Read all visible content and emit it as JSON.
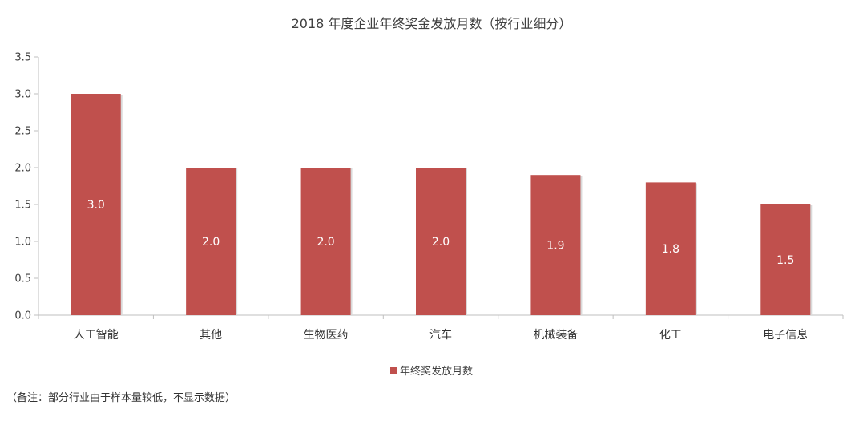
{
  "chart_data": {
    "type": "bar",
    "title": "2018 年度企业年终奖金发放月数（按行业细分）",
    "categories": [
      "人工智能",
      "其他",
      "生物医药",
      "汽车",
      "机械装备",
      "化工",
      "电子信息"
    ],
    "values": [
      3.0,
      2.0,
      2.0,
      2.0,
      1.9,
      1.8,
      1.5
    ],
    "value_labels": [
      "3.0",
      "2.0",
      "2.0",
      "2.0",
      "1.9",
      "1.8",
      "1.5"
    ],
    "series": [
      {
        "name": "年终奖发放月数",
        "values": [
          3.0,
          2.0,
          2.0,
          2.0,
          1.9,
          1.8,
          1.5
        ]
      }
    ],
    "ylim": [
      0,
      3.5
    ],
    "yticks": [
      "0.0",
      "0.5",
      "1.0",
      "1.5",
      "2.0",
      "2.5",
      "3.0",
      "3.5"
    ],
    "xlabel": "",
    "ylabel": "",
    "grid": false,
    "legend_position": "bottom",
    "bar_color": "#c0504d"
  },
  "note": "（备注：部分行业由于样本量较低，不显示数据）"
}
